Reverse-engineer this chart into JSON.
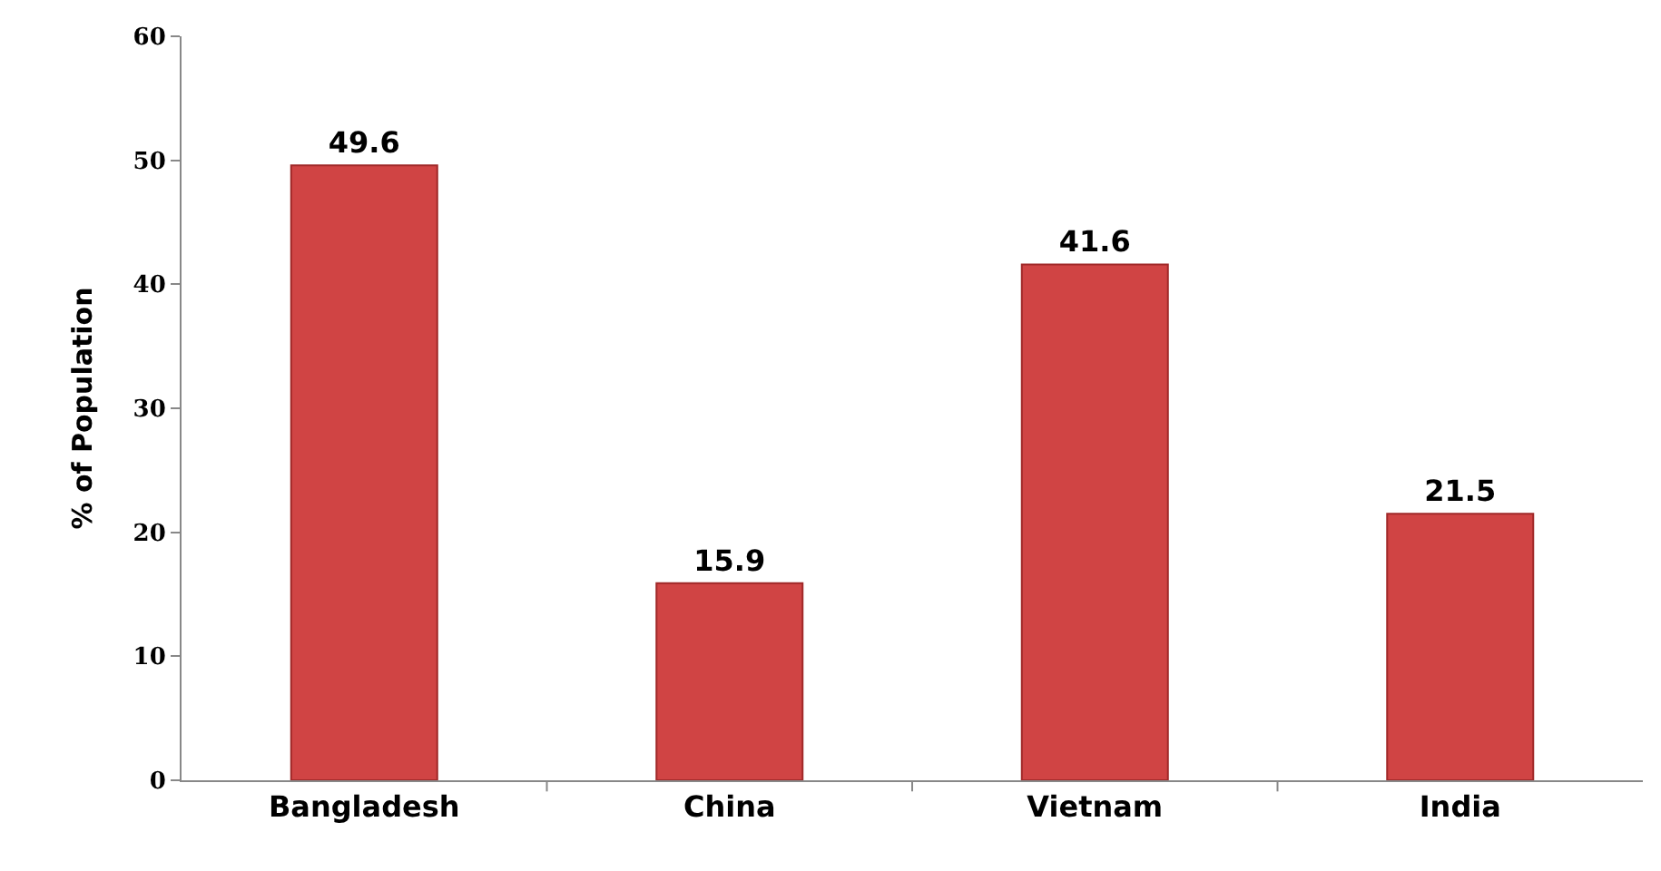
{
  "chart_data": {
    "type": "bar",
    "ylabel": "% of Population",
    "categories": [
      "Bangladesh",
      "China",
      "Vietnam",
      "India"
    ],
    "values": [
      49.6,
      15.9,
      41.6,
      21.5
    ],
    "color": "#d04444",
    "ylim": [
      0,
      60
    ],
    "yticks": [
      0,
      10,
      20,
      30,
      40,
      50,
      60
    ],
    "grid": false,
    "data_labels": true,
    "legend": false
  }
}
